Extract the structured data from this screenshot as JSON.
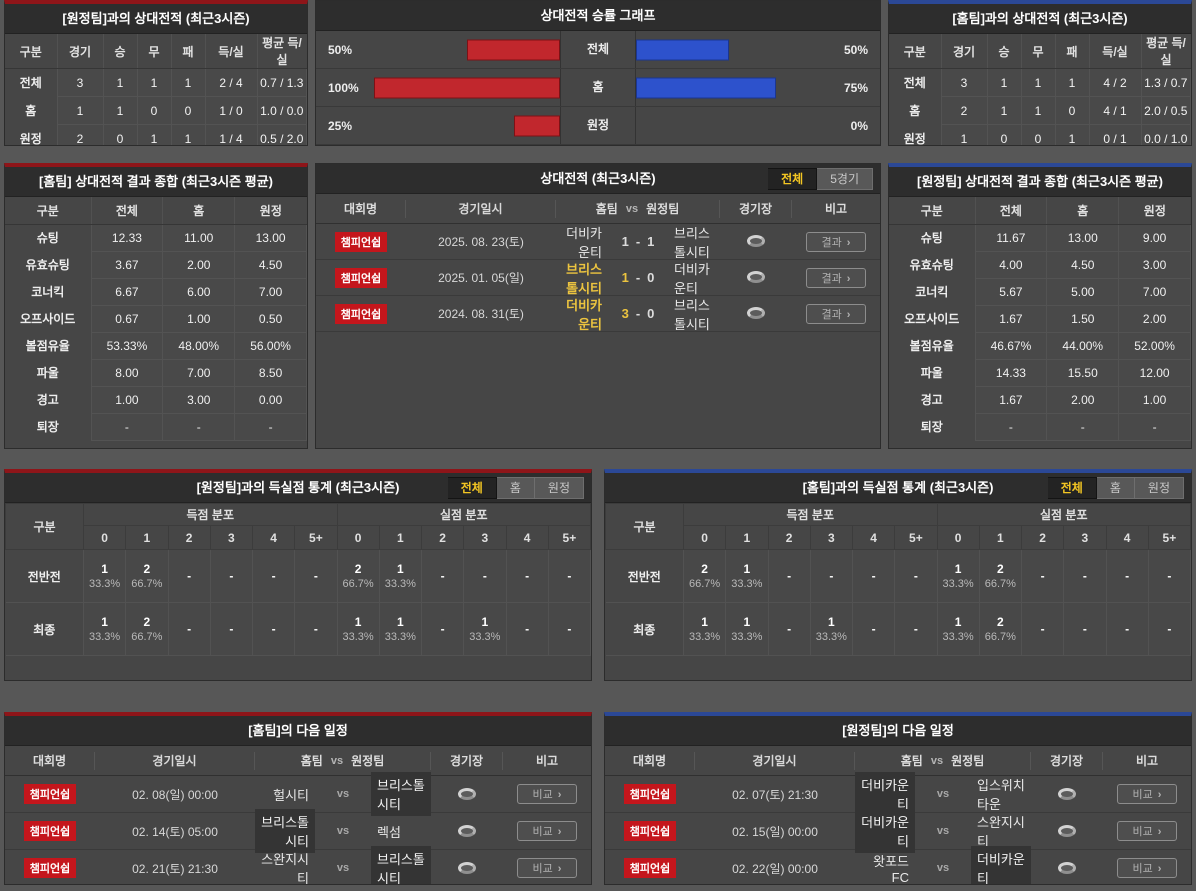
{
  "labels": {
    "gubun": "구분",
    "league": "대회명",
    "datetime": "경기일시",
    "home_team": "홈팀",
    "vs": "vs",
    "away_team": "원정팀",
    "stadium": "경기장",
    "note": "비고",
    "score_sep": "-",
    "scored_dist": "득점 분포",
    "conceded_dist": "실점 분포",
    "goal_cols": [
      "0",
      "1",
      "2",
      "3",
      "4",
      "5+"
    ],
    "stadium_icon": "stadium-icon"
  },
  "colors": {
    "accent_red": "#8e1519",
    "accent_blue": "#2b4896",
    "bar_red": "#c1272d",
    "bar_blue": "#2d52cc",
    "badge_red": "#c4161c",
    "win_yellow": "#ecc43f"
  },
  "top_left": {
    "title": "[원정팀]과의 상대전적 (최근3시즌)",
    "columns": [
      "구분",
      "경기",
      "승",
      "무",
      "패",
      "득/실",
      "평균 득/실"
    ],
    "rows": [
      {
        "label": "전체",
        "cells": [
          "3",
          "1",
          "1",
          "1",
          "2 / 4",
          "0.7 / 1.3"
        ]
      },
      {
        "label": "홈",
        "cells": [
          "1",
          "1",
          "0",
          "0",
          "1 / 0",
          "1.0 / 0.0"
        ]
      },
      {
        "label": "원정",
        "cells": [
          "2",
          "0",
          "1",
          "1",
          "1 / 4",
          "0.5 / 2.0"
        ]
      }
    ]
  },
  "chart": {
    "title": "상대전적 승률 그래프",
    "chart_data": {
      "type": "bar",
      "categories": [
        "전체",
        "홈",
        "원정"
      ],
      "series": [
        {
          "name": "홈팀 승률(적색)",
          "values": [
            50,
            100,
            25
          ]
        },
        {
          "name": "원정팀 승률(청색)",
          "values": [
            50,
            75,
            0
          ]
        }
      ],
      "xlim": [
        0,
        100
      ]
    },
    "rows": [
      {
        "label": "전체",
        "left": {
          "pct": 50,
          "label": "50%"
        },
        "right": {
          "pct": 50,
          "label": "50%"
        }
      },
      {
        "label": "홈",
        "left": {
          "pct": 100,
          "label": "100%"
        },
        "right": {
          "pct": 75,
          "label": "75%"
        }
      },
      {
        "label": "원정",
        "left": {
          "pct": 25,
          "label": "25%"
        },
        "right": {
          "pct": 0,
          "label": "0%"
        }
      }
    ]
  },
  "top_right": {
    "title": "[홈팀]과의 상대전적 (최근3시즌)",
    "columns": [
      "구분",
      "경기",
      "승",
      "무",
      "패",
      "득/실",
      "평균 득/실"
    ],
    "rows": [
      {
        "label": "전체",
        "cells": [
          "3",
          "1",
          "1",
          "1",
          "4 / 2",
          "1.3 / 0.7"
        ]
      },
      {
        "label": "홈",
        "cells": [
          "2",
          "1",
          "1",
          "0",
          "4 / 1",
          "2.0 / 0.5"
        ]
      },
      {
        "label": "원정",
        "cells": [
          "1",
          "0",
          "0",
          "1",
          "0 / 1",
          "0.0 / 1.0"
        ]
      }
    ]
  },
  "summary_home": {
    "title": "[홈팀] 상대전적 결과 종합 (최근3시즌 평균)",
    "columns": [
      "구분",
      "전체",
      "홈",
      "원정"
    ],
    "rows": [
      {
        "label": "슈팅",
        "cells": [
          "12.33",
          "11.00",
          "13.00"
        ]
      },
      {
        "label": "유효슈팅",
        "cells": [
          "3.67",
          "2.00",
          "4.50"
        ]
      },
      {
        "label": "코너킥",
        "cells": [
          "6.67",
          "6.00",
          "7.00"
        ]
      },
      {
        "label": "오프사이드",
        "cells": [
          "0.67",
          "1.00",
          "0.50"
        ]
      },
      {
        "label": "볼점유율",
        "cells": [
          "53.33%",
          "48.00%",
          "56.00%"
        ]
      },
      {
        "label": "파울",
        "cells": [
          "8.00",
          "7.00",
          "8.50"
        ]
      },
      {
        "label": "경고",
        "cells": [
          "1.00",
          "3.00",
          "0.00"
        ]
      },
      {
        "label": "퇴장",
        "cells": [
          "-",
          "-",
          "-"
        ]
      }
    ]
  },
  "matches": {
    "title": "상대전적 (최근3시즌)",
    "tabs": [
      {
        "label": "전체",
        "active": true
      },
      {
        "label": "5경기"
      }
    ],
    "rows": [
      {
        "league": "챔피언쉽",
        "date": "2025. 08. 23(토)",
        "home": {
          "name": "더비카운티"
        },
        "score": {
          "home": "1",
          "away": "1"
        },
        "away": {
          "name": "브리스톨시티"
        },
        "button": "결과"
      },
      {
        "league": "챔피언쉽",
        "date": "2025. 01. 05(일)",
        "home": {
          "name": "브리스톨시티",
          "win": true
        },
        "score": {
          "home": "1",
          "away": "0",
          "home_win": true
        },
        "away": {
          "name": "더비카운티"
        },
        "button": "결과"
      },
      {
        "league": "챔피언쉽",
        "date": "2024. 08. 31(토)",
        "home": {
          "name": "더비카운티",
          "win": true
        },
        "score": {
          "home": "3",
          "away": "0",
          "home_win": true
        },
        "away": {
          "name": "브리스톨시티"
        },
        "button": "결과"
      }
    ]
  },
  "summary_away": {
    "title": "[원정팀] 상대전적 결과 종합 (최근3시즌 평균)",
    "columns": [
      "구분",
      "전체",
      "홈",
      "원정"
    ],
    "rows": [
      {
        "label": "슈팅",
        "cells": [
          "11.67",
          "13.00",
          "9.00"
        ]
      },
      {
        "label": "유효슈팅",
        "cells": [
          "4.00",
          "4.50",
          "3.00"
        ]
      },
      {
        "label": "코너킥",
        "cells": [
          "5.67",
          "5.00",
          "7.00"
        ]
      },
      {
        "label": "오프사이드",
        "cells": [
          "1.67",
          "1.50",
          "2.00"
        ]
      },
      {
        "label": "볼점유율",
        "cells": [
          "46.67%",
          "44.00%",
          "52.00%"
        ]
      },
      {
        "label": "파울",
        "cells": [
          "14.33",
          "15.50",
          "12.00"
        ]
      },
      {
        "label": "경고",
        "cells": [
          "1.67",
          "2.00",
          "1.00"
        ]
      },
      {
        "label": "퇴장",
        "cells": [
          "-",
          "-",
          "-"
        ]
      }
    ]
  },
  "goals_away": {
    "title": "[원정팀]과의 득실점 통계 (최근3시즌)",
    "tabs": [
      {
        "label": "전체",
        "active": true
      },
      {
        "label": "홈"
      },
      {
        "label": "원정"
      }
    ],
    "rows": [
      {
        "label": "전반전",
        "cells": [
          {
            "n": "1",
            "p": "33.3%"
          },
          {
            "n": "2",
            "p": "66.7%"
          },
          {
            "n": "-",
            "p": ""
          },
          {
            "n": "-",
            "p": ""
          },
          {
            "n": "-",
            "p": ""
          },
          {
            "n": "-",
            "p": ""
          },
          {
            "n": "2",
            "p": "66.7%"
          },
          {
            "n": "1",
            "p": "33.3%"
          },
          {
            "n": "-",
            "p": ""
          },
          {
            "n": "-",
            "p": ""
          },
          {
            "n": "-",
            "p": ""
          },
          {
            "n": "-",
            "p": ""
          }
        ]
      },
      {
        "label": "최종",
        "cells": [
          {
            "n": "1",
            "p": "33.3%"
          },
          {
            "n": "2",
            "p": "66.7%"
          },
          {
            "n": "-",
            "p": ""
          },
          {
            "n": "-",
            "p": ""
          },
          {
            "n": "-",
            "p": ""
          },
          {
            "n": "-",
            "p": ""
          },
          {
            "n": "1",
            "p": "33.3%"
          },
          {
            "n": "1",
            "p": "33.3%"
          },
          {
            "n": "-",
            "p": ""
          },
          {
            "n": "1",
            "p": "33.3%"
          },
          {
            "n": "-",
            "p": ""
          },
          {
            "n": "-",
            "p": ""
          }
        ]
      }
    ]
  },
  "goals_home": {
    "title": "[홈팀]과의 득실점 통계 (최근3시즌)",
    "tabs": [
      {
        "label": "전체",
        "active": true
      },
      {
        "label": "홈"
      },
      {
        "label": "원정"
      }
    ],
    "rows": [
      {
        "label": "전반전",
        "cells": [
          {
            "n": "2",
            "p": "66.7%"
          },
          {
            "n": "1",
            "p": "33.3%"
          },
          {
            "n": "-",
            "p": ""
          },
          {
            "n": "-",
            "p": ""
          },
          {
            "n": "-",
            "p": ""
          },
          {
            "n": "-",
            "p": ""
          },
          {
            "n": "1",
            "p": "33.3%"
          },
          {
            "n": "2",
            "p": "66.7%"
          },
          {
            "n": "-",
            "p": ""
          },
          {
            "n": "-",
            "p": ""
          },
          {
            "n": "-",
            "p": ""
          },
          {
            "n": "-",
            "p": ""
          }
        ]
      },
      {
        "label": "최종",
        "cells": [
          {
            "n": "1",
            "p": "33.3%"
          },
          {
            "n": "1",
            "p": "33.3%"
          },
          {
            "n": "-",
            "p": ""
          },
          {
            "n": "1",
            "p": "33.3%"
          },
          {
            "n": "-",
            "p": ""
          },
          {
            "n": "-",
            "p": ""
          },
          {
            "n": "1",
            "p": "33.3%"
          },
          {
            "n": "2",
            "p": "66.7%"
          },
          {
            "n": "-",
            "p": ""
          },
          {
            "n": "-",
            "p": ""
          },
          {
            "n": "-",
            "p": ""
          },
          {
            "n": "-",
            "p": ""
          }
        ]
      }
    ]
  },
  "schedule_home": {
    "title": "[홈팀]의 다음 일정",
    "rows": [
      {
        "league": "챔피언쉽",
        "date": "02. 08(일) 00:00",
        "home": {
          "name": "헐시티"
        },
        "away": {
          "name": "브리스톨시티",
          "hl": true
        },
        "button": "비교"
      },
      {
        "league": "챔피언쉽",
        "date": "02. 14(토) 05:00",
        "home": {
          "name": "브리스톨시티",
          "hl": true
        },
        "away": {
          "name": "렉섬"
        },
        "button": "비교"
      },
      {
        "league": "챔피언쉽",
        "date": "02. 21(토) 21:30",
        "home": {
          "name": "스완지시티"
        },
        "away": {
          "name": "브리스톨시티",
          "hl": true
        },
        "button": "비교"
      }
    ]
  },
  "schedule_away": {
    "title": "[원정팀]의 다음 일정",
    "rows": [
      {
        "league": "챔피언쉽",
        "date": "02. 07(토) 21:30",
        "home": {
          "name": "더비카운티",
          "hl": true
        },
        "away": {
          "name": "입스위치타운"
        },
        "button": "비교"
      },
      {
        "league": "챔피언쉽",
        "date": "02. 15(일) 00:00",
        "home": {
          "name": "더비카운티",
          "hl": true
        },
        "away": {
          "name": "스완지시티"
        },
        "button": "비교"
      },
      {
        "league": "챔피언쉽",
        "date": "02. 22(일) 00:00",
        "home": {
          "name": "왓포드FC"
        },
        "away": {
          "name": "더비카운티",
          "hl": true
        },
        "button": "비교"
      }
    ]
  }
}
